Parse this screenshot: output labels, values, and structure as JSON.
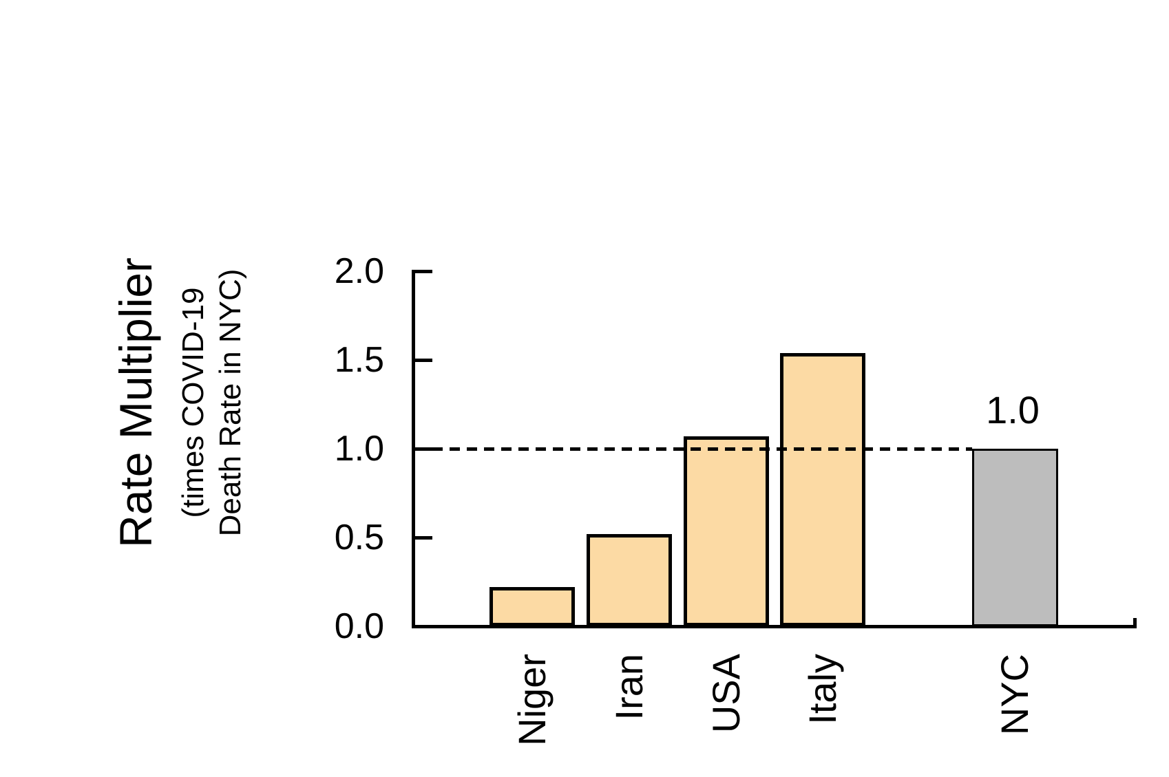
{
  "chart_data": {
    "type": "bar",
    "categories": [
      "Niger",
      "Iran",
      "USA",
      "Italy",
      "NYC"
    ],
    "values": [
      0.22,
      0.52,
      1.07,
      1.54,
      1.0
    ],
    "bar_colors": [
      "#FCDAA4",
      "#FCDAA4",
      "#FCDAA4",
      "#FCDAA4",
      "#BDBDBD"
    ],
    "bar_border_color": "#000000",
    "ylabel_main": "Rate Multiplier",
    "ylabel_sub_lines": [
      "(times COVID-19",
      "Death Rate in NYC)"
    ],
    "yticks": [
      2.0,
      1.5,
      1.0,
      0.5,
      0.0
    ],
    "ytick_labels": [
      "2.0",
      "1.5",
      "1.0",
      "0.5",
      "0.0"
    ],
    "ylim": [
      0,
      2.0
    ],
    "grid": false,
    "legend": null,
    "reference_line": {
      "value": 1.0,
      "style": "dashed",
      "color": "#000000"
    },
    "bar_value_label": {
      "text": "1.0",
      "category": "NYC"
    }
  }
}
